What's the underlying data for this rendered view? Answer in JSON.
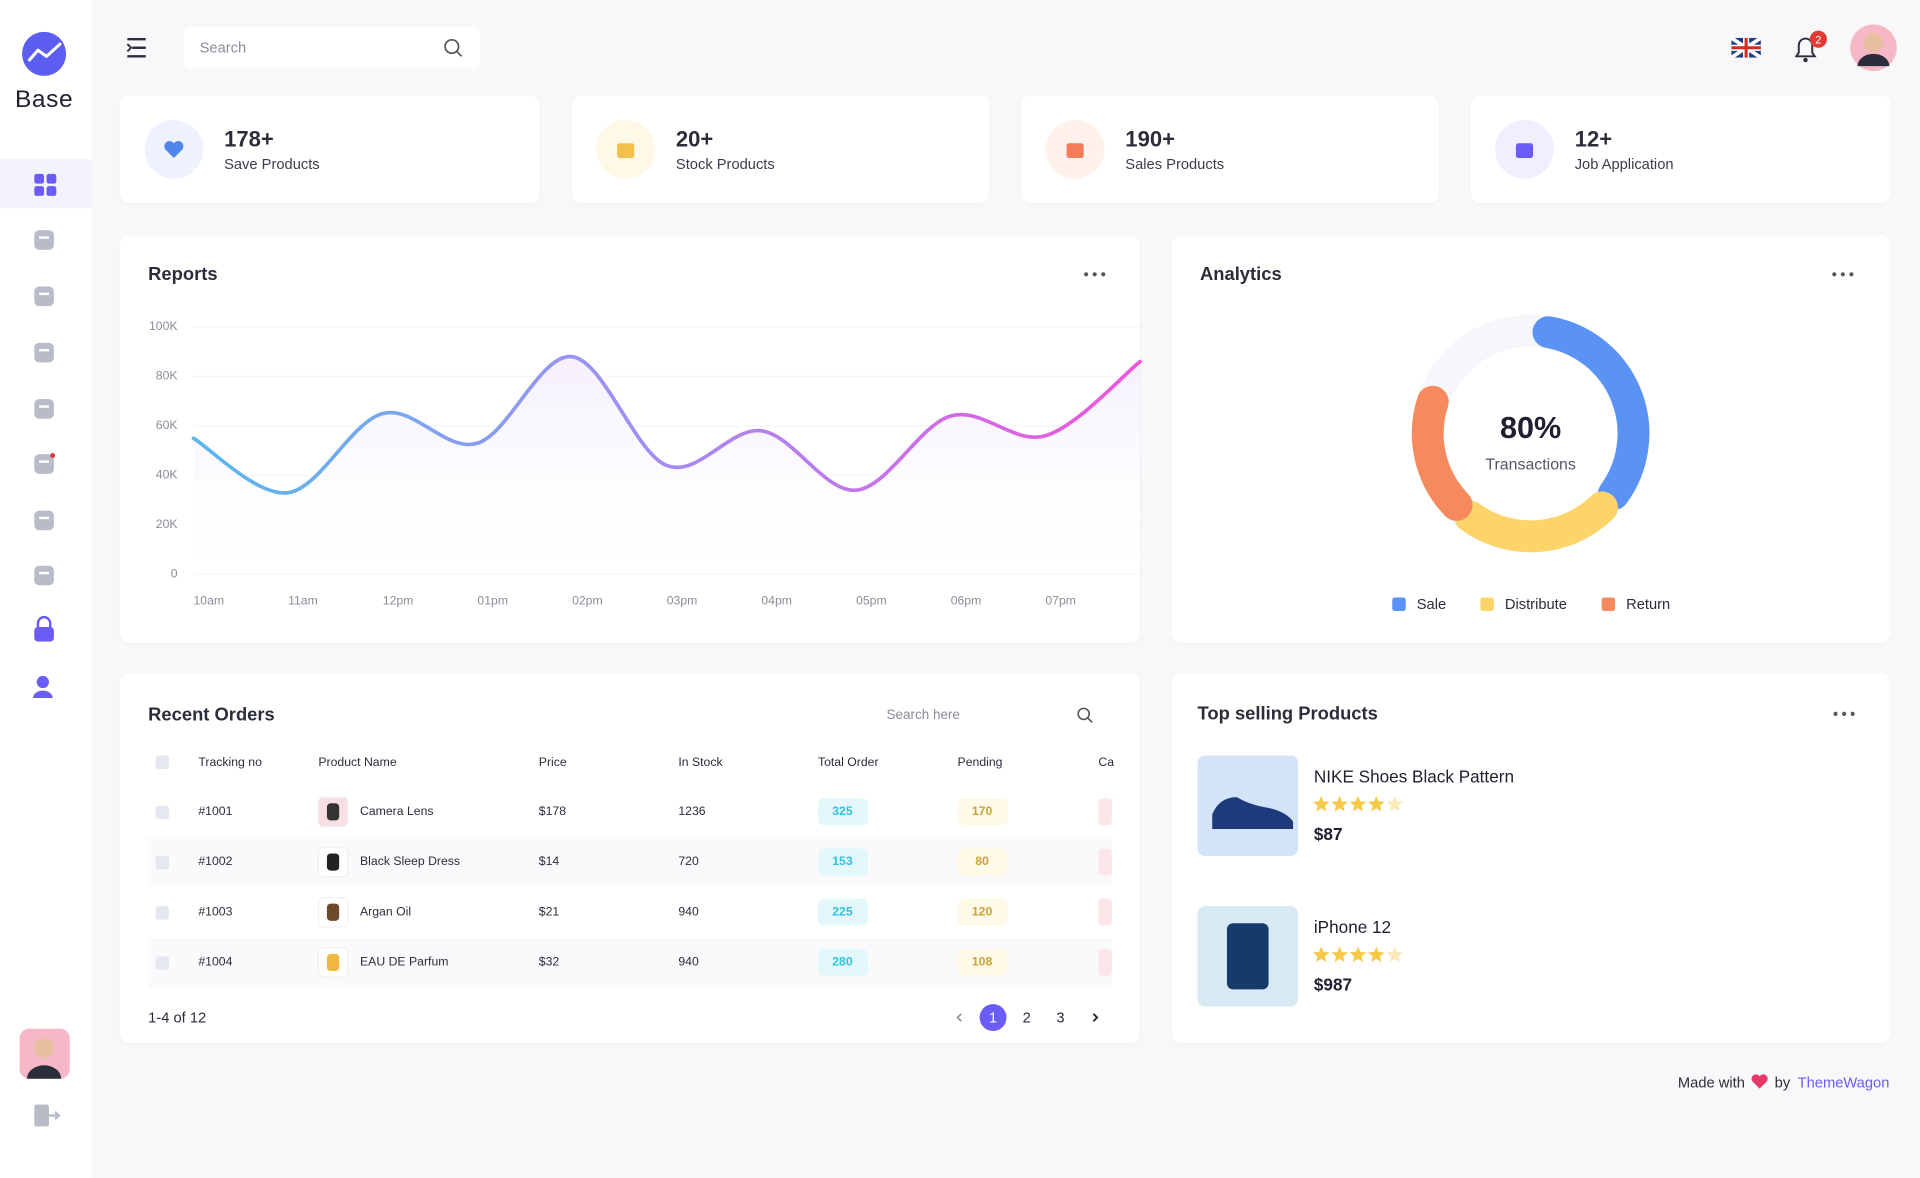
{
  "sidebar": {
    "brand": "Base"
  },
  "header": {
    "search_placeholder": "Search",
    "notifications": 2
  },
  "stats": [
    {
      "value": "178+",
      "label": "Save Products"
    },
    {
      "value": "20+",
      "label": "Stock Products"
    },
    {
      "value": "190+",
      "label": "Sales Products"
    },
    {
      "value": "12+",
      "label": "Job Application"
    }
  ],
  "chart_data": [
    {
      "type": "line",
      "title": "Reports",
      "categories": [
        "10am",
        "11am",
        "12pm",
        "01pm",
        "02pm",
        "03pm",
        "04pm",
        "05pm",
        "06pm",
        "07pm",
        null
      ],
      "values": [
        55000,
        33000,
        65000,
        53000,
        88000,
        44000,
        58000,
        34000,
        64000,
        56000,
        86000
      ],
      "ylim": [
        0,
        100000
      ],
      "yticks": [
        0,
        {
          "value": 20000,
          "label": "20K"
        },
        {
          "value": 40000,
          "label": "40K"
        },
        {
          "value": 60000,
          "label": "60K"
        },
        {
          "value": 80000,
          "label": "80K"
        },
        {
          "value": 100000,
          "label": "100K"
        }
      ],
      "grid": true,
      "colors": [
        "#5ab8ec",
        "#a58cf2",
        "#ee55dc"
      ]
    },
    {
      "type": "donut",
      "title": "Analytics",
      "center_value": "80%",
      "center_label": "Transactions",
      "categories": [
        "Sale",
        "Distribute",
        "Return"
      ],
      "values": [
        35,
        25,
        20
      ],
      "colors": [
        "#5b93f5",
        "#fdd46a",
        "#f48a5e"
      ]
    }
  ],
  "orders": {
    "title": "Recent Orders",
    "search_placeholder": "Search here",
    "columns": [
      "Tracking no",
      "Product Name",
      "Price",
      "In Stock",
      "Total Order",
      "Pending",
      "Ca"
    ],
    "rows": [
      [
        "#1001",
        "Camera Lens",
        "$178",
        1236,
        325,
        170
      ],
      [
        "#1002",
        "Black Sleep Dress",
        "$14",
        720,
        153,
        80
      ],
      [
        "#1003",
        "Argan Oil",
        "$21",
        940,
        225,
        120
      ],
      [
        "#1004",
        "EAU DE Parfum",
        "$32",
        940,
        280,
        108
      ]
    ],
    "summary": "1-4 of 12",
    "pages": [
      1,
      2,
      3
    ],
    "current": 1
  },
  "top_products": {
    "title": "Top selling Products",
    "items": [
      {
        "name": "NIKE Shoes Black Pattern",
        "rating": 4,
        "price": "$87"
      },
      {
        "name": "iPhone 12",
        "rating": 4,
        "price": "$987"
      }
    ]
  },
  "footer": {
    "made_with": "Made with",
    "by": "by",
    "brand": "ThemeWagon"
  }
}
